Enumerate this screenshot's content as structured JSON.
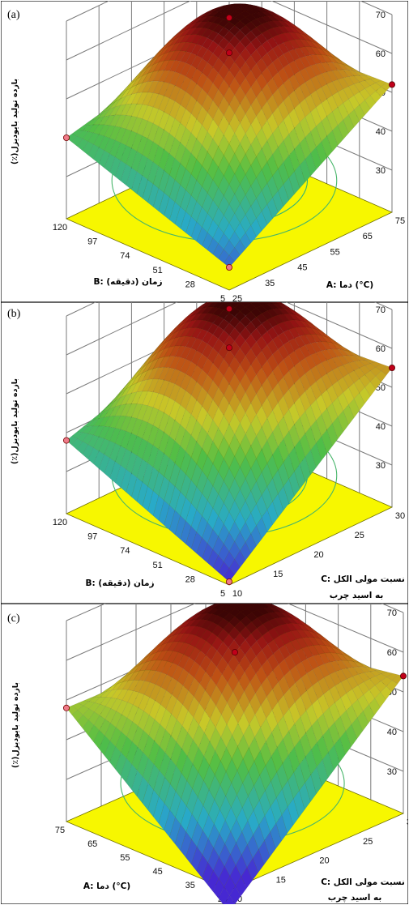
{
  "chart_data": [
    {
      "type": "surface",
      "panel_label": "(a)",
      "zlabel": "بازده تولید بایودیزل(٪)",
      "zlim": [
        30,
        70
      ],
      "z_ticks": [
        "70",
        "60",
        "50",
        "40",
        "30"
      ],
      "xlabel": "B: زمان (دقیقه)",
      "x_ticks": [
        "120",
        "97",
        "74",
        "51",
        "28",
        "5"
      ],
      "ylabel": "A: دما (°C)",
      "y_ticks": [
        "25",
        "35",
        "45",
        "55",
        "65",
        "75"
      ],
      "surface": {
        "left_corner": 40,
        "right_corner": 52,
        "front_corner": 25,
        "back_corner": 50,
        "peak": 69
      },
      "points": [
        {
          "x": "120",
          "y": "25",
          "z": 40
        },
        {
          "x": "5",
          "y": "75",
          "z": 52
        },
        {
          "x": "5",
          "y": "25",
          "z": 25
        },
        {
          "x": "62.5",
          "y": "50",
          "z": 61
        },
        {
          "x": "62.5",
          "y": "50",
          "z": 70
        }
      ]
    },
    {
      "type": "surface",
      "panel_label": "(b)",
      "zlabel": "بازده تولید بایودیزل(٪)",
      "zlim": [
        30,
        70
      ],
      "z_ticks": [
        "70",
        "60",
        "50",
        "40",
        "30"
      ],
      "xlabel": "B: زمان (دقیقه)",
      "x_ticks": [
        "120",
        "97",
        "74",
        "51",
        "28",
        "5"
      ],
      "ylabel_line1": "C: نسبت مولی الکل",
      "ylabel_line2": "به اسید چرب",
      "y_ticks": [
        "10",
        "15",
        "20",
        "25",
        "30"
      ],
      "surface": {
        "left_corner": 38,
        "right_corner": 55,
        "front_corner": 20,
        "back_corner": 52,
        "peak": 70
      },
      "points": [
        {
          "x": "120",
          "y": "10",
          "z": 38
        },
        {
          "x": "5",
          "y": "30",
          "z": 55
        },
        {
          "x": "5",
          "y": "10",
          "z": 20
        },
        {
          "x": "62.5",
          "y": "20",
          "z": 61
        },
        {
          "x": "62.5",
          "y": "20",
          "z": 70
        }
      ]
    },
    {
      "type": "surface",
      "panel_label": "(c)",
      "zlabel": "بازده تولید بایودیزل(٪)",
      "zlim": [
        30,
        70
      ],
      "z_ticks": [
        "70",
        "60",
        "50",
        "40",
        "30"
      ],
      "xlabel": "A: دما (°C)",
      "x_ticks": [
        "75",
        "65",
        "55",
        "45",
        "35",
        "25"
      ],
      "ylabel_line1": "C: نسبت مولی الکل",
      "ylabel_line2": "به اسید چرب",
      "y_ticks": [
        "10",
        "15",
        "20",
        "25",
        "30"
      ],
      "surface": {
        "left_corner": 48,
        "right_corner": 54,
        "front_corner": 14,
        "back_corner": 47,
        "peak": 70
      },
      "points": [
        {
          "x": "75",
          "y": "10",
          "z": 48
        },
        {
          "x": "25",
          "y": "30",
          "z": 54
        },
        {
          "x": "25",
          "y": "10",
          "z": 14
        },
        {
          "x": "50",
          "y": "20",
          "z": 61
        }
      ]
    }
  ]
}
